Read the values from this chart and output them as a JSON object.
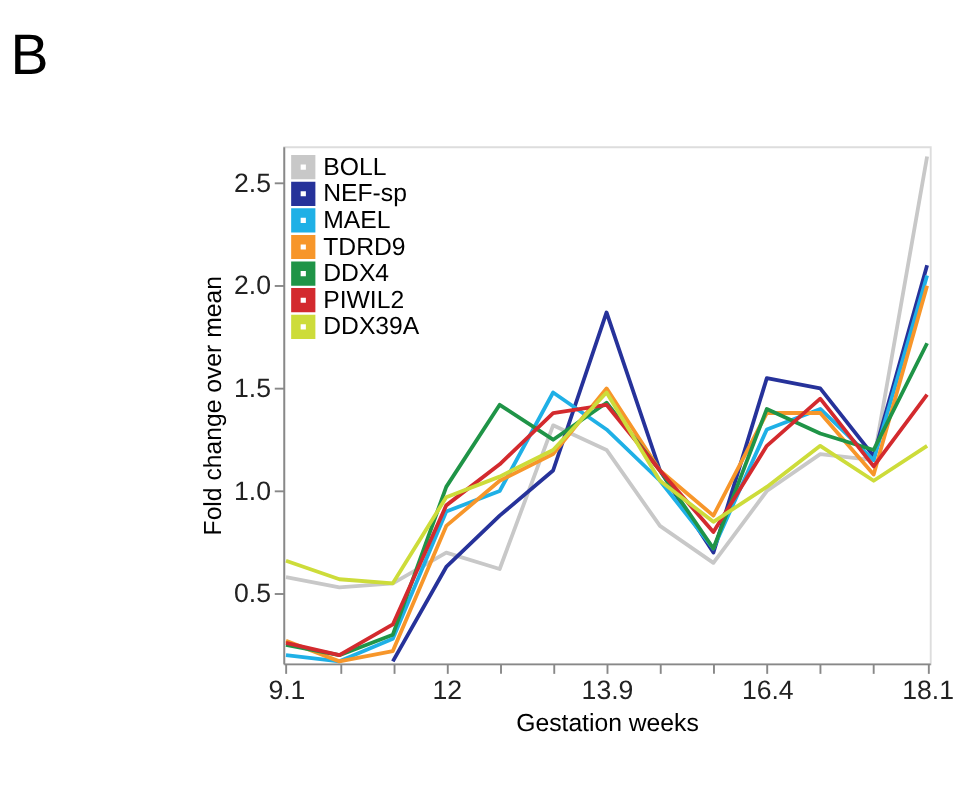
{
  "chart_data": {
    "type": "line",
    "annotations": [
      "B"
    ],
    "xlabel": "Gestation weeks",
    "ylabel": "Fold change over mean",
    "categories": [
      "9.1",
      null,
      null,
      "12",
      null,
      null,
      "13.9",
      null,
      null,
      "16.4",
      null,
      null,
      "18.1"
    ],
    "ylim": [
      0.16,
      2.68
    ],
    "yticks": [
      0.5,
      {
        "value": 1,
        "label": "1.0"
      },
      1.5,
      {
        "value": 2,
        "label": "2.0"
      },
      2.5
    ],
    "grid": false,
    "legend": "top left",
    "marker": "none",
    "line_style": "solid",
    "series": [
      {
        "name": "BOLL",
        "color": "#c8c8c8",
        "values": [
          0.58,
          0.53,
          0.55,
          0.7,
          0.62,
          1.32,
          1.2,
          0.83,
          0.65,
          1.0,
          1.18,
          1.15,
          2.63
        ]
      },
      {
        "name": "NEF-sp",
        "color": "#26329a",
        "values": [
          null,
          null,
          0.17,
          0.63,
          0.88,
          1.1,
          1.87,
          1.1,
          0.7,
          1.55,
          1.5,
          1.17,
          2.1
        ]
      },
      {
        "name": "MAEL",
        "color": "#1fb0e6",
        "values": [
          0.2,
          0.17,
          0.28,
          0.9,
          1.0,
          1.48,
          1.3,
          1.05,
          0.72,
          1.3,
          1.4,
          1.15,
          2.05
        ]
      },
      {
        "name": "TDRD9",
        "color": "#f7962a",
        "values": [
          0.27,
          0.17,
          0.22,
          0.83,
          1.05,
          1.18,
          1.5,
          1.1,
          0.88,
          1.38,
          1.38,
          1.08,
          2.0
        ]
      },
      {
        "name": "DDX4",
        "color": "#1f9447",
        "values": [
          0.25,
          0.2,
          0.3,
          1.02,
          1.42,
          1.25,
          1.43,
          1.1,
          0.72,
          1.4,
          1.28,
          1.2,
          1.72
        ]
      },
      {
        "name": "PIWIL2",
        "color": "#d32a2e",
        "values": [
          0.26,
          0.2,
          0.35,
          0.93,
          1.13,
          1.38,
          1.42,
          1.1,
          0.8,
          1.22,
          1.45,
          1.12,
          1.47
        ]
      },
      {
        "name": "DDX39A",
        "color": "#cddc3a",
        "values": [
          0.66,
          0.57,
          0.55,
          0.97,
          1.07,
          1.2,
          1.48,
          1.05,
          0.85,
          1.02,
          1.22,
          1.05,
          1.22
        ]
      }
    ]
  }
}
